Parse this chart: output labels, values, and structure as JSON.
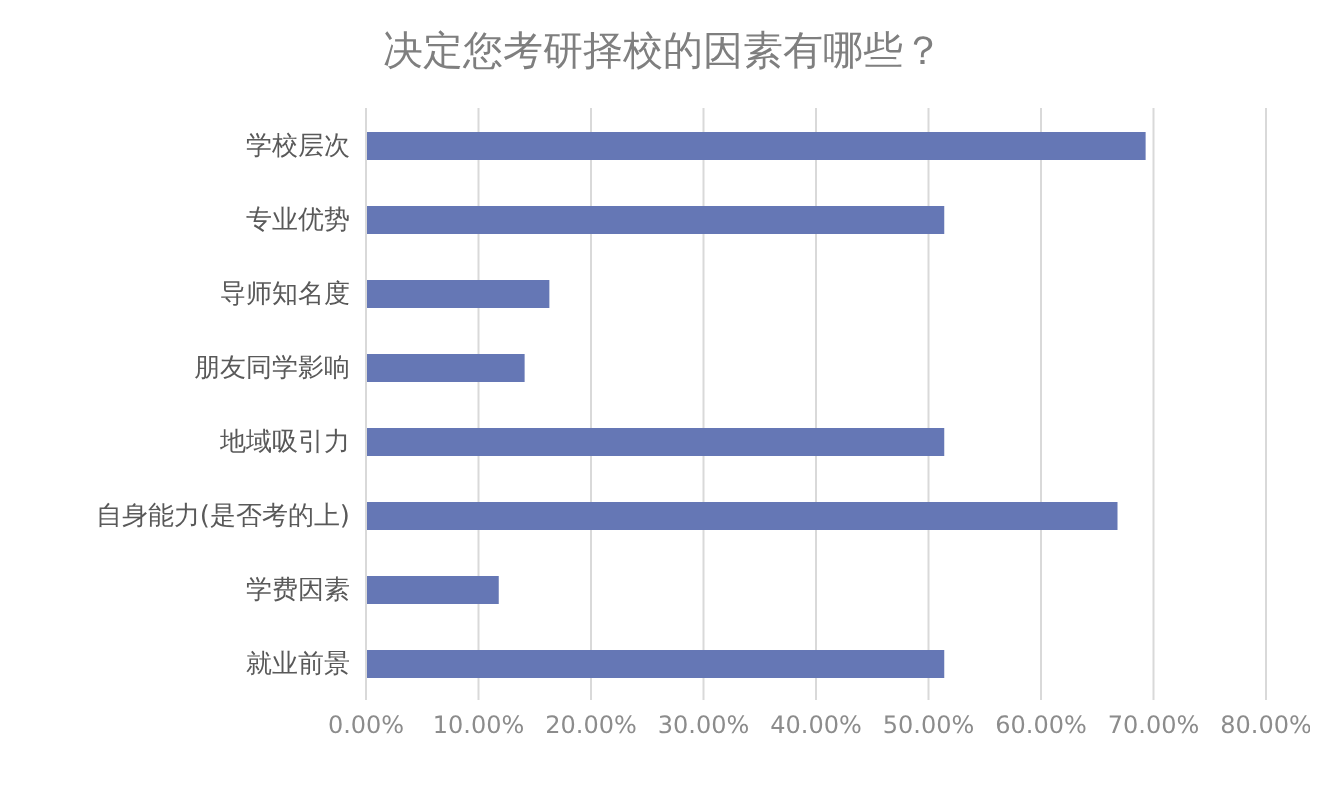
{
  "chart_data": {
    "type": "bar",
    "orientation": "horizontal",
    "title": "决定您考研择校的因素有哪些？",
    "categories": [
      "学校层次",
      "专业优势",
      "导师知名度",
      "朋友同学影响",
      "地域吸引力",
      "自身能力(是否考的上)",
      "学费因素",
      "就业前景"
    ],
    "values": [
      69.3,
      51.4,
      16.3,
      14.1,
      51.4,
      66.8,
      11.8,
      51.4
    ],
    "color": "#6577b5",
    "xlim": [
      0,
      80
    ],
    "xticks": [
      {
        "value": 0,
        "label": "0.00%"
      },
      {
        "value": 10,
        "label": "10.00%"
      },
      {
        "value": 20,
        "label": "20.00%"
      },
      {
        "value": 30,
        "label": "30.00%"
      },
      {
        "value": 40,
        "label": "40.00%"
      },
      {
        "value": 50,
        "label": "50.00%"
      },
      {
        "value": 60,
        "label": "60.00%"
      },
      {
        "value": 70,
        "label": "70.00%"
      },
      {
        "value": 80,
        "label": "80.00%"
      }
    ],
    "grid": "x"
  }
}
